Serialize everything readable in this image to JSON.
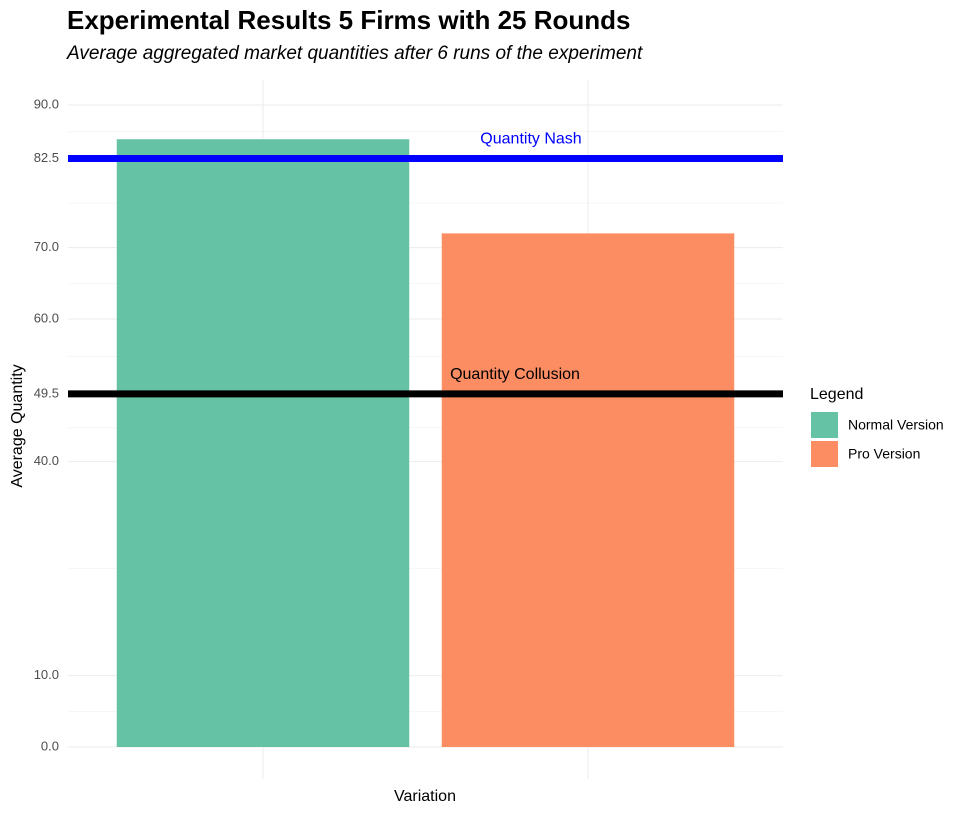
{
  "chart_data": {
    "type": "bar",
    "title": "Experimental Results 5 Firms with 25 Rounds",
    "subtitle": "Average aggregated market quantities after 6 runs of the experiment",
    "x_label": "Variation",
    "y_label": "Average Quantity",
    "categories": [
      "Normal Version",
      "Pro Version"
    ],
    "values": [
      85.2,
      72
    ],
    "colors": [
      "#66c2a5",
      "#fc8d62"
    ],
    "legend_title": "Legend",
    "legend_position": "right",
    "ylim": [
      0,
      90
    ],
    "yticks": [
      {
        "value": 0,
        "label": "0.0"
      },
      {
        "value": 10,
        "label": "10.0"
      },
      {
        "value": 40,
        "label": "40.0"
      },
      49.5,
      {
        "value": 60,
        "label": "60.0"
      },
      {
        "value": 70,
        "label": "70.0"
      },
      82.5,
      {
        "value": 90,
        "label": "90.0"
      }
    ],
    "grid": true,
    "hlines": [
      {
        "label": "Quantity Nash",
        "value": 82.5,
        "color": "#0000ff"
      },
      {
        "label": "Quantity Collusion",
        "value": 49.5,
        "color": "#000000"
      }
    ]
  }
}
